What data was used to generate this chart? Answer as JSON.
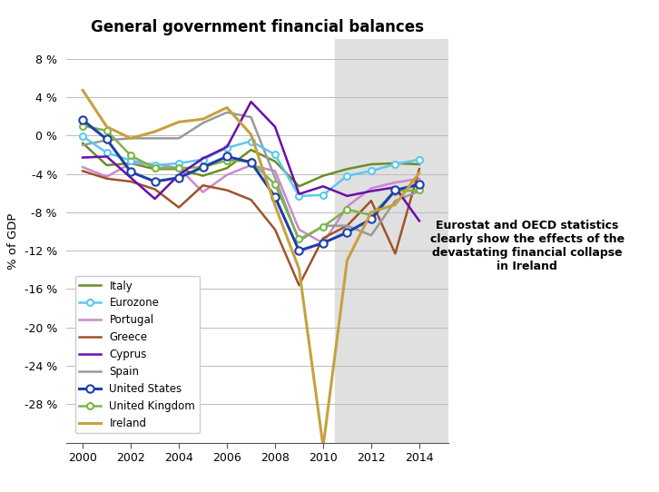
{
  "title": "General government financial balances",
  "ylabel": "% of GDP",
  "annotation": "Eurostat and OECD statistics\nclearly show the effects of the\ndevastating financial collapse\nin Ireland",
  "years": [
    2000,
    2001,
    2002,
    2003,
    2004,
    2005,
    2006,
    2007,
    2008,
    2009,
    2010,
    2011,
    2012,
    2013,
    2014
  ],
  "shade_start": 2010.5,
  "shade_end": 2015.5,
  "ylim": [
    -32,
    10
  ],
  "yticks": [
    8,
    4,
    0,
    -4,
    -8,
    -12,
    -16,
    -20,
    -24,
    -28
  ],
  "xlim": [
    1999.3,
    2015.2
  ],
  "series": {
    "Italy": {
      "color": "#6b8e23",
      "linewidth": 1.8,
      "marker": null,
      "markersize": 0,
      "zorder": 3,
      "values": [
        -0.8,
        -3.1,
        -2.9,
        -3.5,
        -3.5,
        -4.2,
        -3.4,
        -1.5,
        -2.7,
        -5.3,
        -4.2,
        -3.5,
        -3.0,
        -2.9,
        -3.0
      ]
    },
    "Eurozone": {
      "color": "#5bc8f0",
      "linewidth": 1.8,
      "marker": "o",
      "markersize": 5,
      "zorder": 4,
      "values": [
        -0.1,
        -1.8,
        -2.6,
        -3.1,
        -2.9,
        -2.5,
        -1.3,
        -0.6,
        -2.0,
        -6.3,
        -6.2,
        -4.2,
        -3.7,
        -3.0,
        -2.5
      ]
    },
    "Portugal": {
      "color": "#cc88cc",
      "linewidth": 1.8,
      "marker": null,
      "markersize": 0,
      "zorder": 3,
      "values": [
        -3.3,
        -4.3,
        -2.9,
        -3.0,
        -3.4,
        -5.9,
        -4.1,
        -3.1,
        -3.7,
        -9.8,
        -11.2,
        -7.4,
        -5.5,
        -4.9,
        -4.5
      ]
    },
    "Greece": {
      "color": "#a0522d",
      "linewidth": 1.8,
      "marker": null,
      "markersize": 0,
      "zorder": 3,
      "values": [
        -3.7,
        -4.5,
        -4.8,
        -5.6,
        -7.5,
        -5.2,
        -5.7,
        -6.7,
        -9.8,
        -15.6,
        -10.7,
        -9.4,
        -6.8,
        -12.3,
        -3.5
      ]
    },
    "Cyprus": {
      "color": "#6a0dad",
      "linewidth": 1.8,
      "marker": null,
      "markersize": 0,
      "zorder": 5,
      "values": [
        -2.3,
        -2.2,
        -4.4,
        -6.6,
        -4.1,
        -2.4,
        -1.2,
        3.5,
        0.9,
        -6.1,
        -5.3,
        -6.3,
        -5.8,
        -5.4,
        -8.9
      ]
    },
    "Spain": {
      "color": "#999999",
      "linewidth": 1.8,
      "marker": null,
      "markersize": 0,
      "zorder": 3,
      "values": [
        -1.0,
        -0.5,
        -0.3,
        -0.3,
        -0.3,
        1.3,
        2.4,
        1.9,
        -4.4,
        -11.0,
        -9.4,
        -9.4,
        -10.4,
        -6.8,
        -5.8
      ]
    },
    "United States": {
      "color": "#1c3faa",
      "linewidth": 2.2,
      "marker": "o",
      "markersize": 6,
      "zorder": 5,
      "values": [
        1.6,
        -0.4,
        -3.8,
        -4.8,
        -4.4,
        -3.3,
        -2.2,
        -2.8,
        -6.4,
        -12.0,
        -11.2,
        -10.1,
        -8.7,
        -5.7,
        -5.1
      ]
    },
    "United Kingdom": {
      "color": "#7ab648",
      "linewidth": 1.8,
      "marker": "o",
      "markersize": 5,
      "zorder": 4,
      "values": [
        1.0,
        0.5,
        -2.1,
        -3.4,
        -3.4,
        -3.3,
        -2.6,
        -2.7,
        -5.1,
        -10.8,
        -9.5,
        -7.7,
        -8.3,
        -5.8,
        -5.7
      ]
    },
    "Ireland": {
      "color": "#c8a040",
      "linewidth": 2.2,
      "marker": null,
      "markersize": 0,
      "zorder": 6,
      "values": [
        4.7,
        0.9,
        -0.3,
        0.4,
        1.4,
        1.7,
        2.9,
        0.1,
        -7.3,
        -13.9,
        -32.4,
        -13.0,
        -8.0,
        -7.2,
        -3.9
      ]
    }
  },
  "legend_order": [
    "Italy",
    "Eurozone",
    "Portugal",
    "Greece",
    "Cyprus",
    "Spain",
    "United States",
    "United Kingdom",
    "Ireland"
  ],
  "background_color": "#ffffff",
  "shade_color": "#e0e0e0"
}
